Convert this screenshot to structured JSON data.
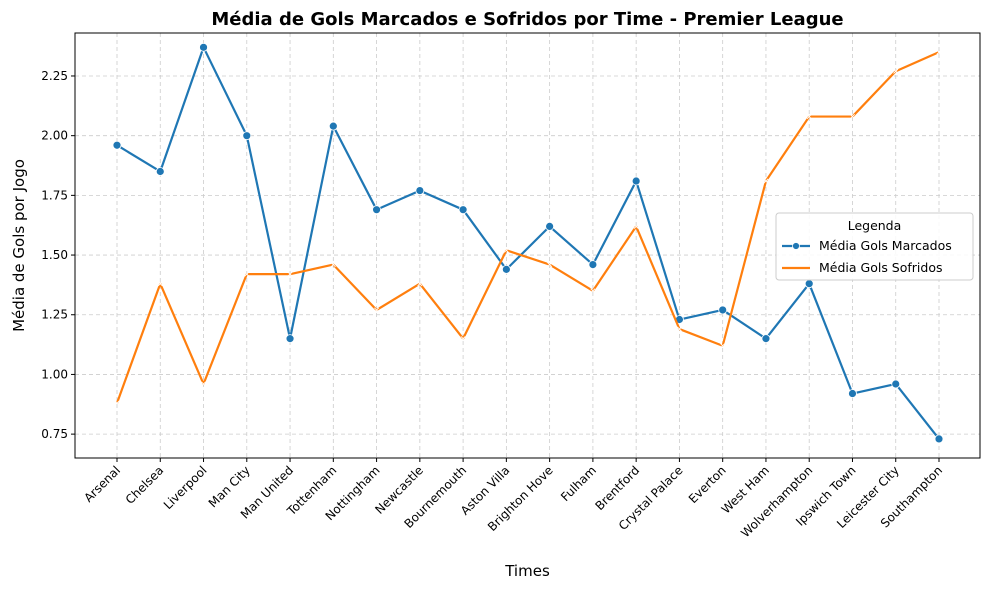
{
  "chart_data": {
    "type": "line",
    "title": "Média de Gols Marcados e Sofridos por Time - Premier League",
    "xlabel": "Times",
    "ylabel": "Média de Gols por Jogo",
    "ylim": [
      0.65,
      2.43
    ],
    "yticks": [
      0.75,
      1.0,
      1.25,
      1.5,
      1.75,
      2.0,
      2.25
    ],
    "ytick_labels": [
      "0.75",
      "1.00",
      "1.25",
      "1.50",
      "1.75",
      "2.00",
      "2.25"
    ],
    "grid": true,
    "legend": {
      "title": "Legenda",
      "placement": "center-right"
    },
    "categories": [
      "Arsenal",
      "Chelsea",
      "Liverpool",
      "Man City",
      "Man United",
      "Tottenham",
      "Nottingham",
      "Newcastle",
      "Bournemouth",
      "Aston Villa",
      "Brighton Hove",
      "Fulham",
      "Brentford",
      "Crystal Palace",
      "Everton",
      "West Ham",
      "Wolverhampton",
      "Ipswich Town",
      "Leicester City",
      "Southampton"
    ],
    "series": [
      {
        "name": "Média Gols Marcados",
        "color": "#1f77b4",
        "marker": "circle",
        "values": [
          1.96,
          1.85,
          2.37,
          2.0,
          1.15,
          2.04,
          1.69,
          1.77,
          1.69,
          1.44,
          1.62,
          1.46,
          1.81,
          1.23,
          1.27,
          1.15,
          1.38,
          0.92,
          0.96,
          0.73
        ]
      },
      {
        "name": "Média Gols Sofridos",
        "color": "#ff7f0e",
        "marker": "x",
        "values": [
          0.88,
          1.38,
          0.96,
          1.42,
          1.42,
          1.46,
          1.27,
          1.38,
          1.15,
          1.52,
          1.46,
          1.35,
          1.62,
          1.19,
          1.12,
          1.81,
          2.08,
          2.08,
          2.27,
          2.35
        ]
      }
    ]
  }
}
